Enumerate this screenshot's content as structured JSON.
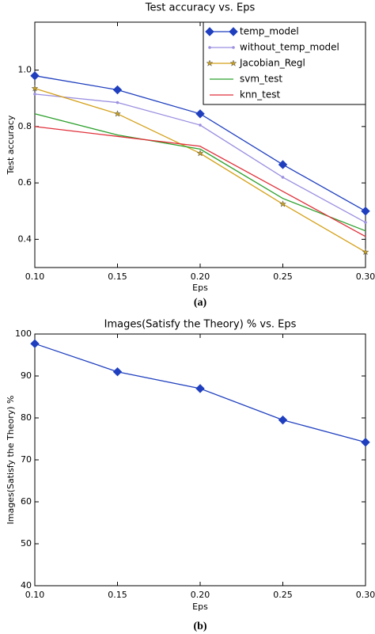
{
  "chart_data": [
    {
      "type": "line",
      "title": "Test accuracy vs. Eps",
      "x_label": "Eps",
      "y_label": "Test accuracy",
      "caption": "(a)",
      "x": [
        0.1,
        0.15,
        0.2,
        0.25,
        0.3
      ],
      "xlim": [
        0.1,
        0.3
      ],
      "xticks": [
        {
          "value": 0.1,
          "label": "0.10"
        },
        {
          "value": 0.15,
          "label": "0.15"
        },
        {
          "value": 0.2,
          "label": "0.20"
        },
        {
          "value": 0.25,
          "label": "0.25"
        },
        {
          "value": 0.3,
          "label": "0.30"
        }
      ],
      "ylim": [
        0.3,
        1.17
      ],
      "yticks": [
        0.4,
        0.6,
        0.8,
        {
          "value": 1,
          "label": "1.0"
        }
      ],
      "legend": "upper right",
      "series": [
        {
          "name": "temp_model",
          "color": "#1f3fbf",
          "marker": "diamond",
          "values": [
            0.98,
            0.93,
            0.845,
            0.665,
            0.5
          ]
        },
        {
          "name": "without_temp_model",
          "color": "#9a8fe0",
          "marker": "point",
          "values": [
            0.915,
            0.885,
            0.805,
            0.62,
            0.46
          ]
        },
        {
          "name": "Jacobian_Regl",
          "color": "#d4a017",
          "marker": "star",
          "values": [
            0.935,
            0.845,
            0.705,
            0.525,
            0.355
          ]
        },
        {
          "name": "svm_test",
          "color": "#2ca02c",
          "values": [
            0.845,
            0.77,
            0.72,
            0.545,
            0.43
          ]
        },
        {
          "name": "knn_test",
          "color": "#e0303a",
          "values": [
            0.8,
            0.765,
            0.73,
            0.57,
            0.41
          ]
        }
      ]
    },
    {
      "type": "line",
      "title": "Images(Satisfy the Theory) % vs. Eps",
      "x_label": "Eps",
      "y_label": "Images(Satisfy the Theory) %",
      "caption": "(b)",
      "x": [
        0.1,
        0.15,
        0.2,
        0.25,
        0.3
      ],
      "xlim": [
        0.1,
        0.3
      ],
      "xticks": [
        {
          "value": 0.1,
          "label": "0.10"
        },
        {
          "value": 0.15,
          "label": "0.15"
        },
        {
          "value": 0.2,
          "label": "0.20"
        },
        {
          "value": 0.25,
          "label": "0.25"
        },
        {
          "value": 0.3,
          "label": "0.30"
        }
      ],
      "ylim": [
        40,
        100
      ],
      "yticks": [
        40,
        50,
        60,
        70,
        80,
        90,
        100
      ],
      "series": [
        {
          "color": "#1f3fbf",
          "marker": "diamond",
          "values": [
            97.7,
            91,
            87,
            79.5,
            74.2
          ]
        }
      ]
    }
  ]
}
